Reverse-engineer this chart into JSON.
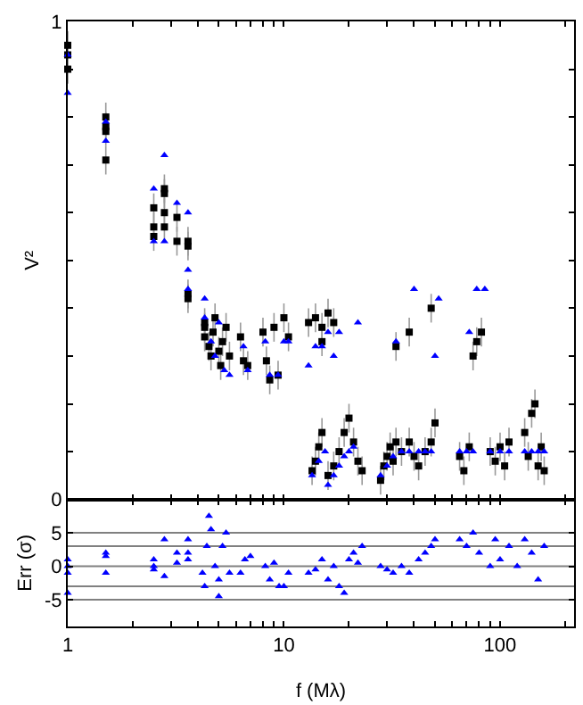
{
  "chart_data": [
    {
      "type": "scatter",
      "ylabel": "V²",
      "xlim": [
        1,
        220
      ],
      "ylim": [
        0,
        1
      ],
      "log": "x",
      "tick_labels": "y",
      "xticks": [
        {
          "value": 1,
          "label": null
        },
        {
          "value": 2,
          "label": null
        },
        {
          "value": 3,
          "label": null
        },
        {
          "value": 4,
          "label": null
        },
        {
          "value": 5,
          "label": null
        },
        {
          "value": 6,
          "label": null
        },
        {
          "value": 7,
          "label": null
        },
        {
          "value": 8,
          "label": null
        },
        {
          "value": 9,
          "label": null
        },
        {
          "value": 10,
          "label": null
        },
        {
          "value": 20,
          "label": null
        },
        {
          "value": 30,
          "label": null
        },
        {
          "value": 40,
          "label": null
        },
        {
          "value": 50,
          "label": null
        },
        {
          "value": 60,
          "label": null
        },
        {
          "value": 70,
          "label": null
        },
        {
          "value": 80,
          "label": null
        },
        {
          "value": 90,
          "label": null
        },
        {
          "value": 100,
          "label": null
        },
        {
          "value": 200,
          "label": null
        }
      ],
      "yticks": [
        0,
        {
          "value": 0.1,
          "label": null
        },
        {
          "value": 0.2,
          "label": null
        },
        {
          "value": 0.3,
          "label": null
        },
        {
          "value": 0.4,
          "label": null
        },
        {
          "value": 0.5,
          "label": null
        },
        {
          "value": 0.6,
          "label": null
        },
        {
          "value": 0.7,
          "label": null
        },
        {
          "value": 0.8,
          "label": null
        },
        {
          "value": 0.9,
          "label": null
        },
        1
      ],
      "series": [
        {
          "color": "#000000",
          "marker": "square",
          "x": [
            1,
            1,
            1,
            1.5,
            1.5,
            1.5,
            1.5,
            2.5,
            2.5,
            2.5,
            2.8,
            2.8,
            2.8,
            2.8,
            3.2,
            3.2,
            3.6,
            3.6,
            3.6,
            3.6,
            4.3,
            4.3,
            4.3,
            4.5,
            4.6,
            4.7,
            4.8,
            5,
            5.1,
            5.2,
            5.4,
            5.6,
            6.3,
            6.5,
            6.8,
            8,
            8.3,
            8.6,
            9,
            9.4,
            10,
            10.5,
            13,
            14,
            15,
            15,
            16,
            17,
            13.5,
            14,
            14.5,
            15,
            16,
            17,
            18,
            19,
            20,
            21,
            22,
            23,
            28,
            29,
            30,
            31,
            32,
            33,
            35,
            38,
            40,
            42,
            45,
            48,
            50,
            33,
            38,
            48,
            65,
            68,
            72,
            75,
            78,
            82,
            90,
            95,
            100,
            105,
            110,
            130,
            135,
            140,
            145,
            150,
            155,
            160
          ],
          "values": [
            0.95,
            0.93,
            0.9,
            0.8,
            0.78,
            0.77,
            0.71,
            0.61,
            0.57,
            0.55,
            0.65,
            0.64,
            0.6,
            0.57,
            0.59,
            0.54,
            0.54,
            0.53,
            0.43,
            0.42,
            0.37,
            0.36,
            0.34,
            0.32,
            0.3,
            0.35,
            0.38,
            0.31,
            0.28,
            0.33,
            0.36,
            0.3,
            0.34,
            0.29,
            0.28,
            0.35,
            0.29,
            0.25,
            0.36,
            0.26,
            0.38,
            0.34,
            0.37,
            0.38,
            0.33,
            0.36,
            0.39,
            0.37,
            0.06,
            0.08,
            0.11,
            0.14,
            0.05,
            0.07,
            0.1,
            0.14,
            0.17,
            0.12,
            0.08,
            0.06,
            0.04,
            0.07,
            0.09,
            0.11,
            0.08,
            0.12,
            0.1,
            0.12,
            0.09,
            0.07,
            0.1,
            0.12,
            0.16,
            0.32,
            0.35,
            0.4,
            0.09,
            0.06,
            0.11,
            0.3,
            0.33,
            0.35,
            0.1,
            0.08,
            0.11,
            0.07,
            0.12,
            0.14,
            0.09,
            0.18,
            0.2,
            0.07,
            0.11,
            0.06
          ],
          "errors": [
            0.03,
            0.03,
            0.03,
            0.03,
            0.03,
            0.03,
            0.03,
            0.03,
            0.03,
            0.03,
            0.03,
            0.03,
            0.03,
            0.03,
            0.03,
            0.03,
            0.03,
            0.03,
            0.03,
            0.03,
            0.03,
            0.03,
            0.03,
            0.03,
            0.03,
            0.03,
            0.03,
            0.03,
            0.03,
            0.03,
            0.03,
            0.03,
            0.03,
            0.03,
            0.03,
            0.03,
            0.03,
            0.03,
            0.03,
            0.03,
            0.03,
            0.03,
            0.03,
            0.03,
            0.03,
            0.03,
            0.03,
            0.03,
            0.03,
            0.03,
            0.03,
            0.03,
            0.03,
            0.03,
            0.03,
            0.03,
            0.03,
            0.03,
            0.03,
            0.03,
            0.03,
            0.03,
            0.03,
            0.03,
            0.03,
            0.03,
            0.03,
            0.03,
            0.03,
            0.03,
            0.03,
            0.03,
            0.03,
            0.03,
            0.03,
            0.03,
            0.03,
            0.03,
            0.03,
            0.03,
            0.03,
            0.03,
            0.03,
            0.03,
            0.03,
            0.03,
            0.03,
            0.03,
            0.03,
            0.03,
            0.03,
            0.03,
            0.03,
            0.03
          ]
        },
        {
          "color": "#0000ff",
          "marker": "triangle",
          "x": [
            1,
            1,
            1.5,
            1.5,
            2.5,
            2.5,
            2.8,
            2.8,
            3.2,
            3.6,
            3.6,
            3.6,
            4.3,
            4.3,
            4.6,
            4.8,
            5,
            5.3,
            5.6,
            6.5,
            6.8,
            8.2,
            8.6,
            9.4,
            10,
            10.5,
            13,
            14,
            15,
            16,
            17,
            18,
            13.5,
            14.5,
            15.5,
            16,
            17,
            18,
            19,
            20,
            21,
            22,
            28,
            30,
            32,
            35,
            38,
            42,
            45,
            48,
            50,
            33,
            40,
            52,
            65,
            70,
            75,
            72,
            78,
            85,
            90,
            100,
            110,
            130,
            140,
            150,
            160
          ],
          "values": [
            0.93,
            0.85,
            0.79,
            0.75,
            0.65,
            0.54,
            0.72,
            0.54,
            0.62,
            0.6,
            0.48,
            0.44,
            0.42,
            0.38,
            0.33,
            0.3,
            0.37,
            0.27,
            0.26,
            0.32,
            0.27,
            0.33,
            0.26,
            0.26,
            0.33,
            0.33,
            0.28,
            0.32,
            0.32,
            0.35,
            0.3,
            0.35,
            0.05,
            0.08,
            0.1,
            0.03,
            0.05,
            0.07,
            0.09,
            0.1,
            0.11,
            0.37,
            0.05,
            0.07,
            0.09,
            0.1,
            0.1,
            0.1,
            0.1,
            0.1,
            0.3,
            0.33,
            0.44,
            0.42,
            0.1,
            0.1,
            0.1,
            0.35,
            0.44,
            0.44,
            0.1,
            0.1,
            0.1,
            0.1,
            0.1,
            0.1,
            0.1
          ]
        }
      ]
    },
    {
      "type": "scatter",
      "xlabel": "f (Mλ)",
      "ylabel": "Err (σ)",
      "xlim": [
        1,
        220
      ],
      "ylim": [
        -9,
        10
      ],
      "log": "x",
      "xticks": [
        1,
        {
          "value": 2,
          "label": null
        },
        {
          "value": 3,
          "label": null
        },
        {
          "value": 4,
          "label": null
        },
        {
          "value": 5,
          "label": null
        },
        {
          "value": 6,
          "label": null
        },
        {
          "value": 7,
          "label": null
        },
        {
          "value": 8,
          "label": null
        },
        {
          "value": 9,
          "label": null
        },
        10,
        {
          "value": 20,
          "label": null
        },
        {
          "value": 30,
          "label": null
        },
        {
          "value": 40,
          "label": null
        },
        {
          "value": 50,
          "label": null
        },
        {
          "value": 60,
          "label": null
        },
        {
          "value": 70,
          "label": null
        },
        {
          "value": 80,
          "label": null
        },
        {
          "value": 90,
          "label": null
        },
        100,
        {
          "value": 200,
          "label": null
        }
      ],
      "yticks": [
        -5,
        0,
        5
      ],
      "ref_lines": [
        {
          "axis": "y",
          "value": 5,
          "color": "#808080"
        },
        {
          "axis": "y",
          "value": 3,
          "color": "#808080"
        },
        {
          "axis": "y",
          "value": 0,
          "color": "#808080"
        },
        {
          "axis": "y",
          "value": -3,
          "color": "#808080"
        },
        {
          "axis": "y",
          "value": -5,
          "color": "#808080"
        }
      ],
      "series": [
        {
          "color": "#0000ff",
          "marker": "triangle",
          "x": [
            1,
            1,
            1,
            1,
            1.5,
            1.5,
            1.5,
            2.5,
            2.5,
            2.5,
            2.8,
            2.8,
            3.2,
            3.2,
            3.6,
            3.6,
            3.6,
            4.2,
            4.3,
            4.4,
            4.5,
            4.6,
            4.8,
            5,
            5,
            5.2,
            5.4,
            5.6,
            6.3,
            6.6,
            7,
            8.2,
            8.6,
            9,
            9.5,
            10,
            10.5,
            13,
            14,
            15,
            16,
            17,
            18,
            19,
            20,
            21,
            22,
            23,
            28,
            30,
            32,
            35,
            38,
            42,
            45,
            48,
            50,
            65,
            70,
            75,
            80,
            90,
            95,
            100,
            110,
            120,
            130,
            140,
            150,
            160
          ],
          "values": [
            1,
            0,
            -1,
            -4,
            2,
            1.5,
            -1,
            1,
            0,
            -0.5,
            4,
            -1.5,
            2,
            0.5,
            4,
            2,
            1,
            -1,
            -3,
            3,
            7.5,
            5.5,
            0,
            -2,
            -4.5,
            3,
            5,
            -1,
            -1,
            1,
            1.5,
            0,
            -2,
            0.5,
            -3,
            -3,
            -1,
            -1,
            -0.5,
            1,
            -2,
            0,
            -3,
            -4,
            1,
            2,
            0.5,
            3,
            0,
            -0.5,
            -1,
            0,
            -1,
            1,
            2,
            3,
            4,
            4,
            3,
            5,
            2,
            0,
            4,
            1,
            3,
            0,
            4,
            2,
            -2,
            3
          ]
        }
      ]
    }
  ]
}
